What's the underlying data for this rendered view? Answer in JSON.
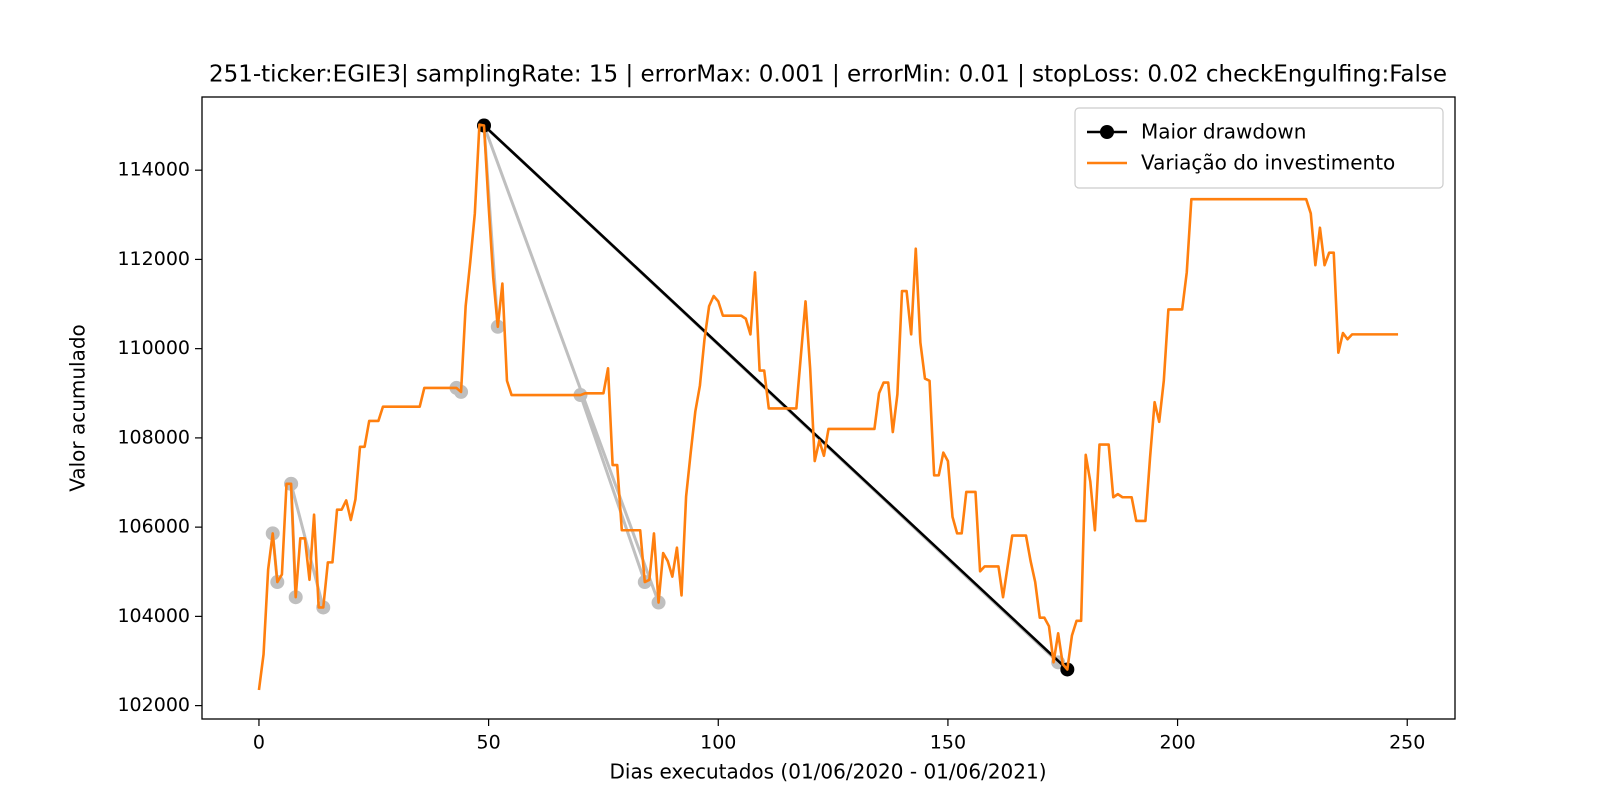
{
  "chart_data": {
    "type": "line",
    "title": "251-ticker:EGIE3| samplingRate: 15 | errorMax: 0.001 | errorMin: 0.01 | stopLoss: 0.02 checkEngulfing:False",
    "x_label": "Dias executados (01/06/2020 - 01/06/2021)",
    "y_label": "Valor acumulado",
    "xlim": [
      -12.4,
      260.4
    ],
    "ylim": [
      101700,
      115640
    ],
    "xticks": [
      0,
      50,
      100,
      150,
      200,
      250
    ],
    "yticks": [
      102000,
      104000,
      106000,
      108000,
      110000,
      112000,
      114000
    ],
    "grid": false,
    "legend": "upper-right",
    "drawdown_candidates": {
      "color": "#bfbfbf",
      "x": [
        3,
        4,
        null,
        7,
        8,
        null,
        7,
        14,
        null,
        43,
        44,
        null,
        49,
        52,
        null,
        49,
        87,
        null,
        70,
        84,
        null,
        49,
        174
      ],
      "values": [
        105860,
        104770,
        null,
        106970,
        104430,
        null,
        106970,
        104200,
        null,
        109120,
        109030,
        null,
        115000,
        110490,
        null,
        115000,
        104310,
        null,
        108960,
        104770,
        null,
        115000,
        102970
      ]
    },
    "series": [
      {
        "name": "Maior drawdown",
        "color": "#000000",
        "marker": true,
        "x": [
          49,
          176
        ],
        "values": [
          115000,
          102810
        ]
      },
      {
        "name": "Variação do investimento",
        "color": "#ff7f0e",
        "marker": false,
        "x": [
          0,
          1,
          2,
          3,
          4,
          5,
          6,
          7,
          8,
          9,
          10,
          11,
          12,
          13,
          14,
          15,
          16,
          17,
          18,
          19,
          20,
          21,
          22,
          23,
          24,
          25,
          26,
          27,
          28,
          29,
          30,
          31,
          32,
          33,
          34,
          35,
          36,
          37,
          38,
          39,
          40,
          41,
          42,
          43,
          44,
          45,
          46,
          47,
          48,
          49,
          50,
          51,
          52,
          53,
          54,
          55,
          56,
          57,
          58,
          59,
          60,
          61,
          62,
          63,
          64,
          65,
          66,
          67,
          68,
          69,
          70,
          71,
          72,
          73,
          74,
          75,
          76,
          77,
          78,
          79,
          80,
          81,
          82,
          83,
          84,
          85,
          86,
          87,
          88,
          89,
          90,
          91,
          92,
          93,
          94,
          95,
          96,
          97,
          98,
          99,
          100,
          101,
          102,
          103,
          104,
          105,
          106,
          107,
          108,
          109,
          110,
          111,
          112,
          113,
          114,
          115,
          116,
          117,
          118,
          119,
          120,
          121,
          122,
          123,
          124,
          125,
          126,
          127,
          128,
          129,
          130,
          131,
          132,
          133,
          134,
          135,
          136,
          137,
          138,
          139,
          140,
          141,
          142,
          143,
          144,
          145,
          146,
          147,
          148,
          149,
          150,
          151,
          152,
          153,
          154,
          155,
          156,
          157,
          158,
          159,
          160,
          161,
          162,
          163,
          164,
          165,
          166,
          167,
          168,
          169,
          170,
          171,
          172,
          173,
          174,
          175,
          176,
          177,
          178,
          179,
          180,
          181,
          182,
          183,
          184,
          185,
          186,
          187,
          188,
          189,
          190,
          191,
          192,
          193,
          194,
          195,
          196,
          197,
          198,
          199,
          200,
          201,
          202,
          203,
          204,
          205,
          206,
          207,
          208,
          209,
          210,
          211,
          212,
          213,
          214,
          215,
          216,
          217,
          218,
          219,
          220,
          221,
          222,
          223,
          224,
          225,
          226,
          227,
          228,
          229,
          230,
          231,
          232,
          233,
          234,
          235,
          236,
          237,
          238,
          239,
          240,
          241,
          242,
          243,
          244,
          245,
          246,
          247,
          248
        ],
        "values": [
          102350,
          103150,
          105050,
          105860,
          104770,
          104940,
          106970,
          106970,
          104430,
          105750,
          105750,
          104820,
          106280,
          104200,
          104200,
          105210,
          105210,
          106390,
          106390,
          106600,
          106160,
          106620,
          107800,
          107800,
          108380,
          108380,
          108380,
          108700,
          108700,
          108700,
          108700,
          108700,
          108700,
          108700,
          108700,
          108700,
          109120,
          109120,
          109120,
          109120,
          109120,
          109120,
          109120,
          109120,
          109030,
          110950,
          111940,
          113030,
          115020,
          115000,
          113210,
          111600,
          110490,
          111460,
          109280,
          108960,
          108960,
          108960,
          108960,
          108960,
          108960,
          108960,
          108960,
          108960,
          108960,
          108960,
          108960,
          108960,
          108960,
          108960,
          108960,
          109000,
          109000,
          109000,
          109000,
          109000,
          109560,
          107390,
          107390,
          105930,
          105930,
          105930,
          105930,
          105930,
          104770,
          104820,
          105860,
          104310,
          105420,
          105240,
          104890,
          105540,
          104470,
          106690,
          107670,
          108590,
          109170,
          110210,
          110950,
          111180,
          111060,
          110740,
          110740,
          110740,
          110740,
          110740,
          110670,
          110320,
          111710,
          109510,
          109510,
          108660,
          108660,
          108660,
          108660,
          108660,
          108660,
          108660,
          109860,
          111060,
          109560,
          107480,
          107940,
          107600,
          108200,
          108200,
          108200,
          108200,
          108200,
          108200,
          108200,
          108200,
          108200,
          108200,
          108200,
          109000,
          109240,
          109240,
          108130,
          108980,
          111290,
          111290,
          110320,
          112240,
          110140,
          109330,
          109280,
          107160,
          107160,
          107670,
          107480,
          106230,
          105860,
          105860,
          106790,
          106790,
          106790,
          105010,
          105120,
          105120,
          105120,
          105120,
          104430,
          105120,
          105810,
          105810,
          105810,
          105810,
          105240,
          104770,
          103970,
          103970,
          103780,
          102970,
          103620,
          102930,
          102810,
          103570,
          103900,
          103900,
          107620,
          107020,
          105930,
          107850,
          107850,
          107850,
          106670,
          106740,
          106670,
          106670,
          106670,
          106140,
          106140,
          106140,
          107550,
          108800,
          108360,
          109280,
          110880,
          110880,
          110880,
          110880,
          111710,
          113350,
          113350,
          113350,
          113350,
          113350,
          113350,
          113350,
          113350,
          113350,
          113350,
          113350,
          113350,
          113350,
          113350,
          113350,
          113350,
          113350,
          113350,
          113350,
          113350,
          113350,
          113350,
          113350,
          113350,
          113350,
          113350,
          113030,
          111870,
          112710,
          111870,
          112150,
          112150,
          109910,
          110350,
          110210,
          110320,
          110320,
          110320,
          110320,
          110320,
          110320,
          110320,
          110320,
          110320,
          110320,
          110320
        ]
      }
    ]
  }
}
